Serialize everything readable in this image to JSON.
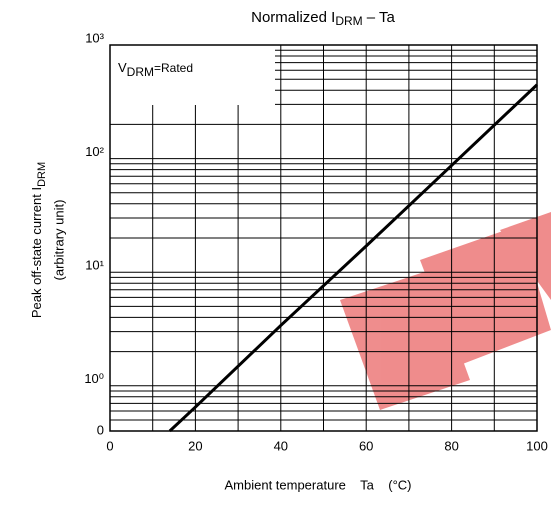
{
  "chart_data": {
    "type": "line",
    "title_parts": [
      "Normalized I",
      "DRM",
      " – Ta"
    ],
    "y_label_parts": [
      "Peak off-state current I",
      "DRM",
      "(arbitrary unit)"
    ],
    "x_label": "Ambient temperature    Ta    (°C)",
    "legend_parts": [
      "V",
      "DRM",
      "=Rated"
    ],
    "log_y": true,
    "xlim": [
      0,
      100
    ],
    "xticks": [
      0,
      20,
      40,
      60,
      80,
      100
    ],
    "x_minor_ticks": [
      10,
      30,
      50,
      70,
      90
    ],
    "ylim": [
      0.4,
      1000
    ],
    "y_origin_label": "0",
    "yticks": [
      {
        "value": 1,
        "label": "10⁰"
      },
      {
        "value": 10,
        "label": "10¹"
      },
      {
        "value": 100,
        "label": "10²"
      },
      {
        "value": 1000,
        "label": "10³"
      }
    ],
    "y_minor_ticks": [
      0.5,
      0.6,
      0.7,
      0.8,
      0.9,
      2,
      3,
      4,
      5,
      6,
      7,
      8,
      9,
      20,
      30,
      40,
      50,
      60,
      70,
      80,
      90,
      200,
      300,
      400,
      500,
      600,
      700,
      800,
      900
    ],
    "grid": true,
    "series": [
      {
        "color": "#000000",
        "x": [
          14,
          20,
          40,
          60,
          80,
          100
        ],
        "values": [
          0.4,
          0.65,
          3.4,
          17,
          87,
          447
        ]
      }
    ]
  }
}
